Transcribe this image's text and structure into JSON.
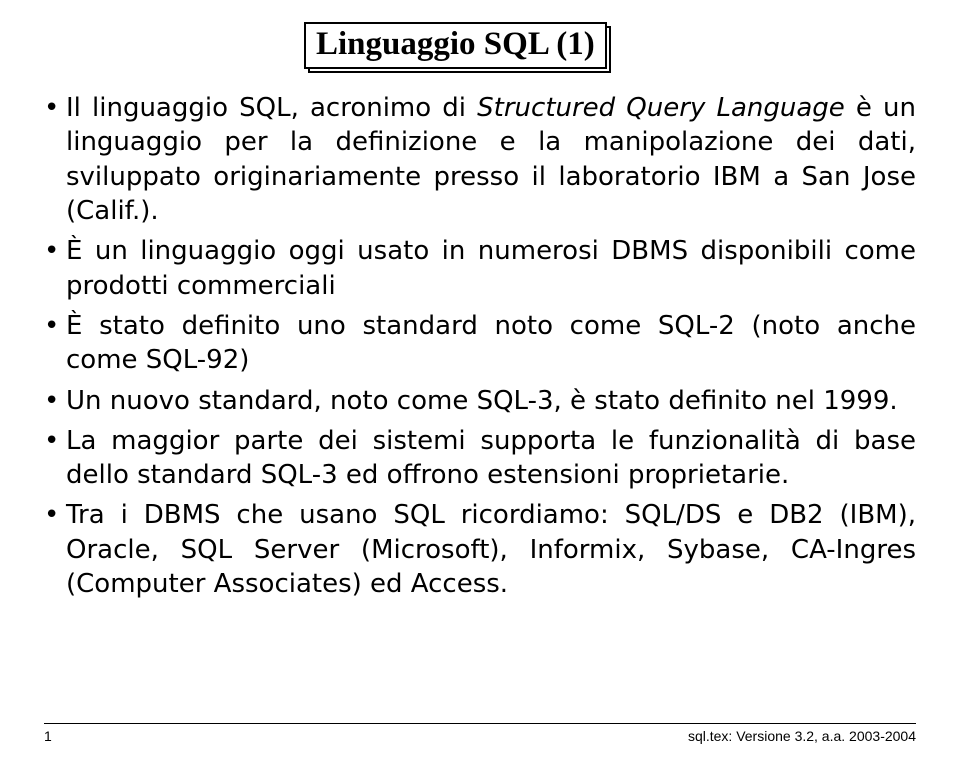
{
  "title": "Linguaggio SQL (1)",
  "bullets": {
    "b1_pre": "Il linguaggio SQL, acronimo di ",
    "b1_ital": "Structured Query Language",
    "b1_post": " è un linguaggio per la definizione e la manipolazione dei dati, sviluppato originariamente presso il laboratorio IBM a San Jose (Calif.).",
    "b2": "È un linguaggio oggi usato in numerosi DBMS disponibili come prodotti commerciali",
    "b3": "È stato definito uno standard noto come SQL-2 (noto anche come SQL-92)",
    "b4": "Un nuovo standard, noto come SQL-3, è stato definito nel 1999.",
    "b5": "La maggior parte dei sistemi supporta le funzionalità di base dello standard SQL-3 ed offrono estensioni proprietarie.",
    "b6": "Tra i DBMS che usano SQL ricordiamo: SQL/DS e DB2 (IBM), Oracle, SQL Server (Microsoft), Informix, Sybase, CA-Ingres (Computer Associates) ed Access."
  },
  "footer": {
    "page_number": "1",
    "version": "sql.tex: Versione 3.2, a.a. 2003-2004"
  },
  "colors": {
    "text": "#000000",
    "background": "#ffffff",
    "border": "#000000"
  },
  "fonts": {
    "title_family": "serif",
    "title_size_pt": 24,
    "body_family": "sans-serif",
    "body_size_pt": 19,
    "footer_size_pt": 10
  }
}
